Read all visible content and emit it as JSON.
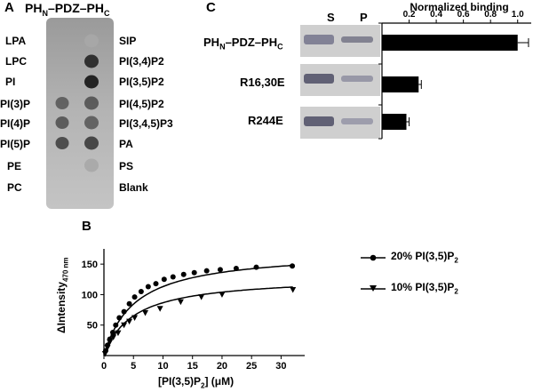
{
  "panel_a": {
    "letter": "A",
    "title_main": "PH",
    "title_sub1": "N",
    "title_mid": "–PDZ–PH",
    "title_sub2": "C",
    "left_labels": [
      "LPA",
      "LPC",
      "PI",
      "PI(3)P",
      "PI(4)P",
      "PI(5)P",
      "PE",
      "PC"
    ],
    "right_labels": [
      "SIP",
      "PI(3,4)P2",
      "PI(3,5)P2",
      "PI(4,5)P2",
      "PI(3,4,5)P3",
      "PA",
      "PS",
      "Blank"
    ],
    "left_spot_intensity": [
      0.0,
      0.0,
      0.0,
      0.55,
      0.6,
      0.7,
      0.0,
      0.0
    ],
    "right_spot_intensity": [
      0.05,
      0.9,
      1.0,
      0.6,
      0.55,
      0.75,
      0.05,
      0.0
    ]
  },
  "panel_b": {
    "letter": "B",
    "legend": [
      {
        "marker": "circle",
        "text_main": "20% PI(3,5)P",
        "text_sub": "2"
      },
      {
        "marker": "triangle-down",
        "text_main": "10% PI(3,5)P",
        "text_sub": "2"
      }
    ],
    "y_label_main": "ΔIntensity",
    "y_label_sub": "470 nm",
    "x_label_pre": "[PI(3,5)P",
    "x_label_sub": "2",
    "x_label_post": "] (μM)",
    "chart_data": {
      "type": "scatter",
      "xlabel": "[PI(3,5)P2] (μM)",
      "ylabel": "ΔIntensity 470 nm",
      "xlim": [
        0,
        34
      ],
      "ylim": [
        0,
        175
      ],
      "xticks": [
        0,
        5,
        10,
        15,
        20,
        25,
        30
      ],
      "yticks": [
        50,
        100,
        150
      ],
      "series": [
        {
          "name": "20% PI(3,5)P2",
          "marker": "circle",
          "x": [
            0.3,
            0.6,
            1.0,
            1.5,
            2.0,
            2.6,
            3.4,
            4.3,
            5.2,
            6.3,
            7.5,
            8.8,
            10.2,
            11.7,
            13.5,
            15.3,
            17.4,
            19.7,
            22.4,
            25.8,
            31.9
          ],
          "y": [
            8,
            17,
            27,
            38,
            50,
            62,
            72,
            85,
            96,
            105,
            113,
            118,
            125,
            129,
            133,
            136,
            139,
            141,
            143,
            145,
            147
          ],
          "fit": {
            "model": "hyperbolic",
            "bmax": 172,
            "kd": 5.2
          }
        },
        {
          "name": "10% PI(3,5)P2",
          "marker": "triangle-down",
          "x": [
            0.2,
            0.6,
            1.0,
            1.6,
            2.4,
            3.4,
            4.3,
            5.2,
            7.0,
            9.5,
            13.0,
            16.5,
            20.0,
            32.0
          ],
          "y": [
            3,
            13,
            22,
            30,
            37,
            50,
            56,
            62,
            70,
            77,
            88,
            96,
            100,
            108
          ],
          "fit": {
            "model": "hyperbolic",
            "bmax": 130,
            "kd": 5.0
          }
        }
      ]
    }
  },
  "panel_c": {
    "letter": "C",
    "col_s": "S",
    "col_p": "P",
    "rows": [
      {
        "label_main": "PH",
        "label_sub1": "N",
        "label_mid": "–PDZ–PH",
        "label_sub2": "C",
        "s_band": 0.55,
        "p_band": 0.55
      },
      {
        "label_main": "R16,30E",
        "label_sub1": "",
        "label_mid": "",
        "label_sub2": "",
        "s_band": 0.85,
        "p_band": 0.35
      },
      {
        "label_main": "R244E",
        "label_sub1": "",
        "label_mid": "",
        "label_sub2": "",
        "s_band": 0.85,
        "p_band": 0.3
      }
    ],
    "bar_title": "Normalized binding",
    "chart_data": {
      "type": "bar",
      "orientation": "horizontal",
      "title": "Normalized binding",
      "categories": [
        "PHN–PDZ–PHC",
        "R16,30E",
        "R244E"
      ],
      "values": [
        1.0,
        0.27,
        0.18
      ],
      "errors": [
        0.08,
        0.02,
        0.02
      ],
      "xlim": [
        0,
        1.1
      ],
      "xticks": [
        0.2,
        0.4,
        0.6,
        0.8,
        1.0
      ],
      "xtick_labels": [
        "0.2",
        "0.4",
        "0.6",
        "0.8",
        "1.0"
      ]
    }
  }
}
